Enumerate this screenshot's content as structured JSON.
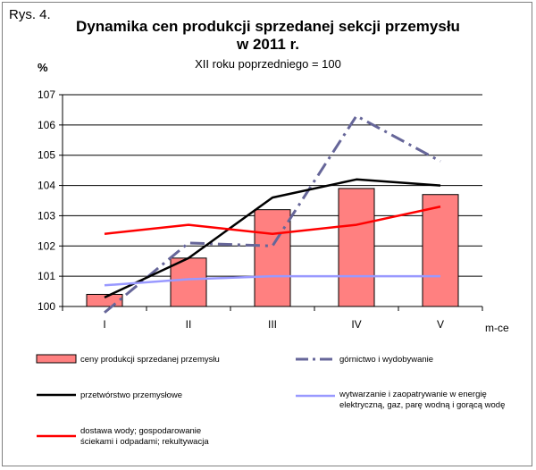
{
  "figure_label": "Rys. 4.",
  "chart_data": {
    "type": "bar+line",
    "title_line1": "Dynamika cen produkcji sprzedanej sekcji przemysłu",
    "title_line2": "w 2011 r.",
    "subtitle": "XII roku poprzedniego = 100",
    "ylabel": "%",
    "xlabel": "m-ce",
    "ylim": [
      100,
      107
    ],
    "yticks": [
      "100",
      "101",
      "102",
      "103",
      "104",
      "105",
      "106",
      "107"
    ],
    "categories": [
      "I",
      "II",
      "III",
      "IV",
      "V"
    ],
    "grid": "horizontal",
    "legend_position": "bottom",
    "series": [
      {
        "name": "ceny produkcji sprzedanej przemysłu",
        "kind": "bar",
        "color": "#ff8080",
        "values": [
          100.4,
          101.6,
          103.2,
          103.9,
          103.7
        ]
      },
      {
        "name": "górnictwo i wydobywanie",
        "kind": "line",
        "style": "dash-dot",
        "color": "#666699",
        "values": [
          99.8,
          102.1,
          102.0,
          106.3,
          104.8
        ]
      },
      {
        "name": "przetwórstwo przemysłowe",
        "kind": "line",
        "style": "solid",
        "color": "#000000",
        "values": [
          100.3,
          101.6,
          103.6,
          104.2,
          104.0
        ]
      },
      {
        "name": "wytwarzanie  i zaopatrywanie  w energię elektryczną, gaz, parę wodną i gorącą wodę",
        "kind": "line",
        "style": "solid",
        "color": "#9999ff",
        "values": [
          100.7,
          100.9,
          101.0,
          101.0,
          101.0
        ]
      },
      {
        "name": "dostawa wody; gospodarowanie ściekami i odpadami; rekultywacja",
        "kind": "line",
        "style": "solid",
        "color": "#ff0000",
        "values": [
          102.4,
          102.7,
          102.4,
          102.7,
          103.3
        ]
      }
    ]
  },
  "legend": {
    "items": [
      {
        "line1": "ceny produkcji sprzedanej przemysłu",
        "line2": ""
      },
      {
        "line1": "górnictwo i wydobywanie",
        "line2": ""
      },
      {
        "line1": "przetwórstwo przemysłowe",
        "line2": ""
      },
      {
        "line1": "wytwarzanie  i zaopatrywanie  w energię",
        "line2": "elektryczną,  gaz, parę wodną i gorącą wodę"
      },
      {
        "line1": "dostawa wody; gospodarowanie",
        "line2": "ściekami i odpadami; rekultywacja"
      }
    ]
  }
}
